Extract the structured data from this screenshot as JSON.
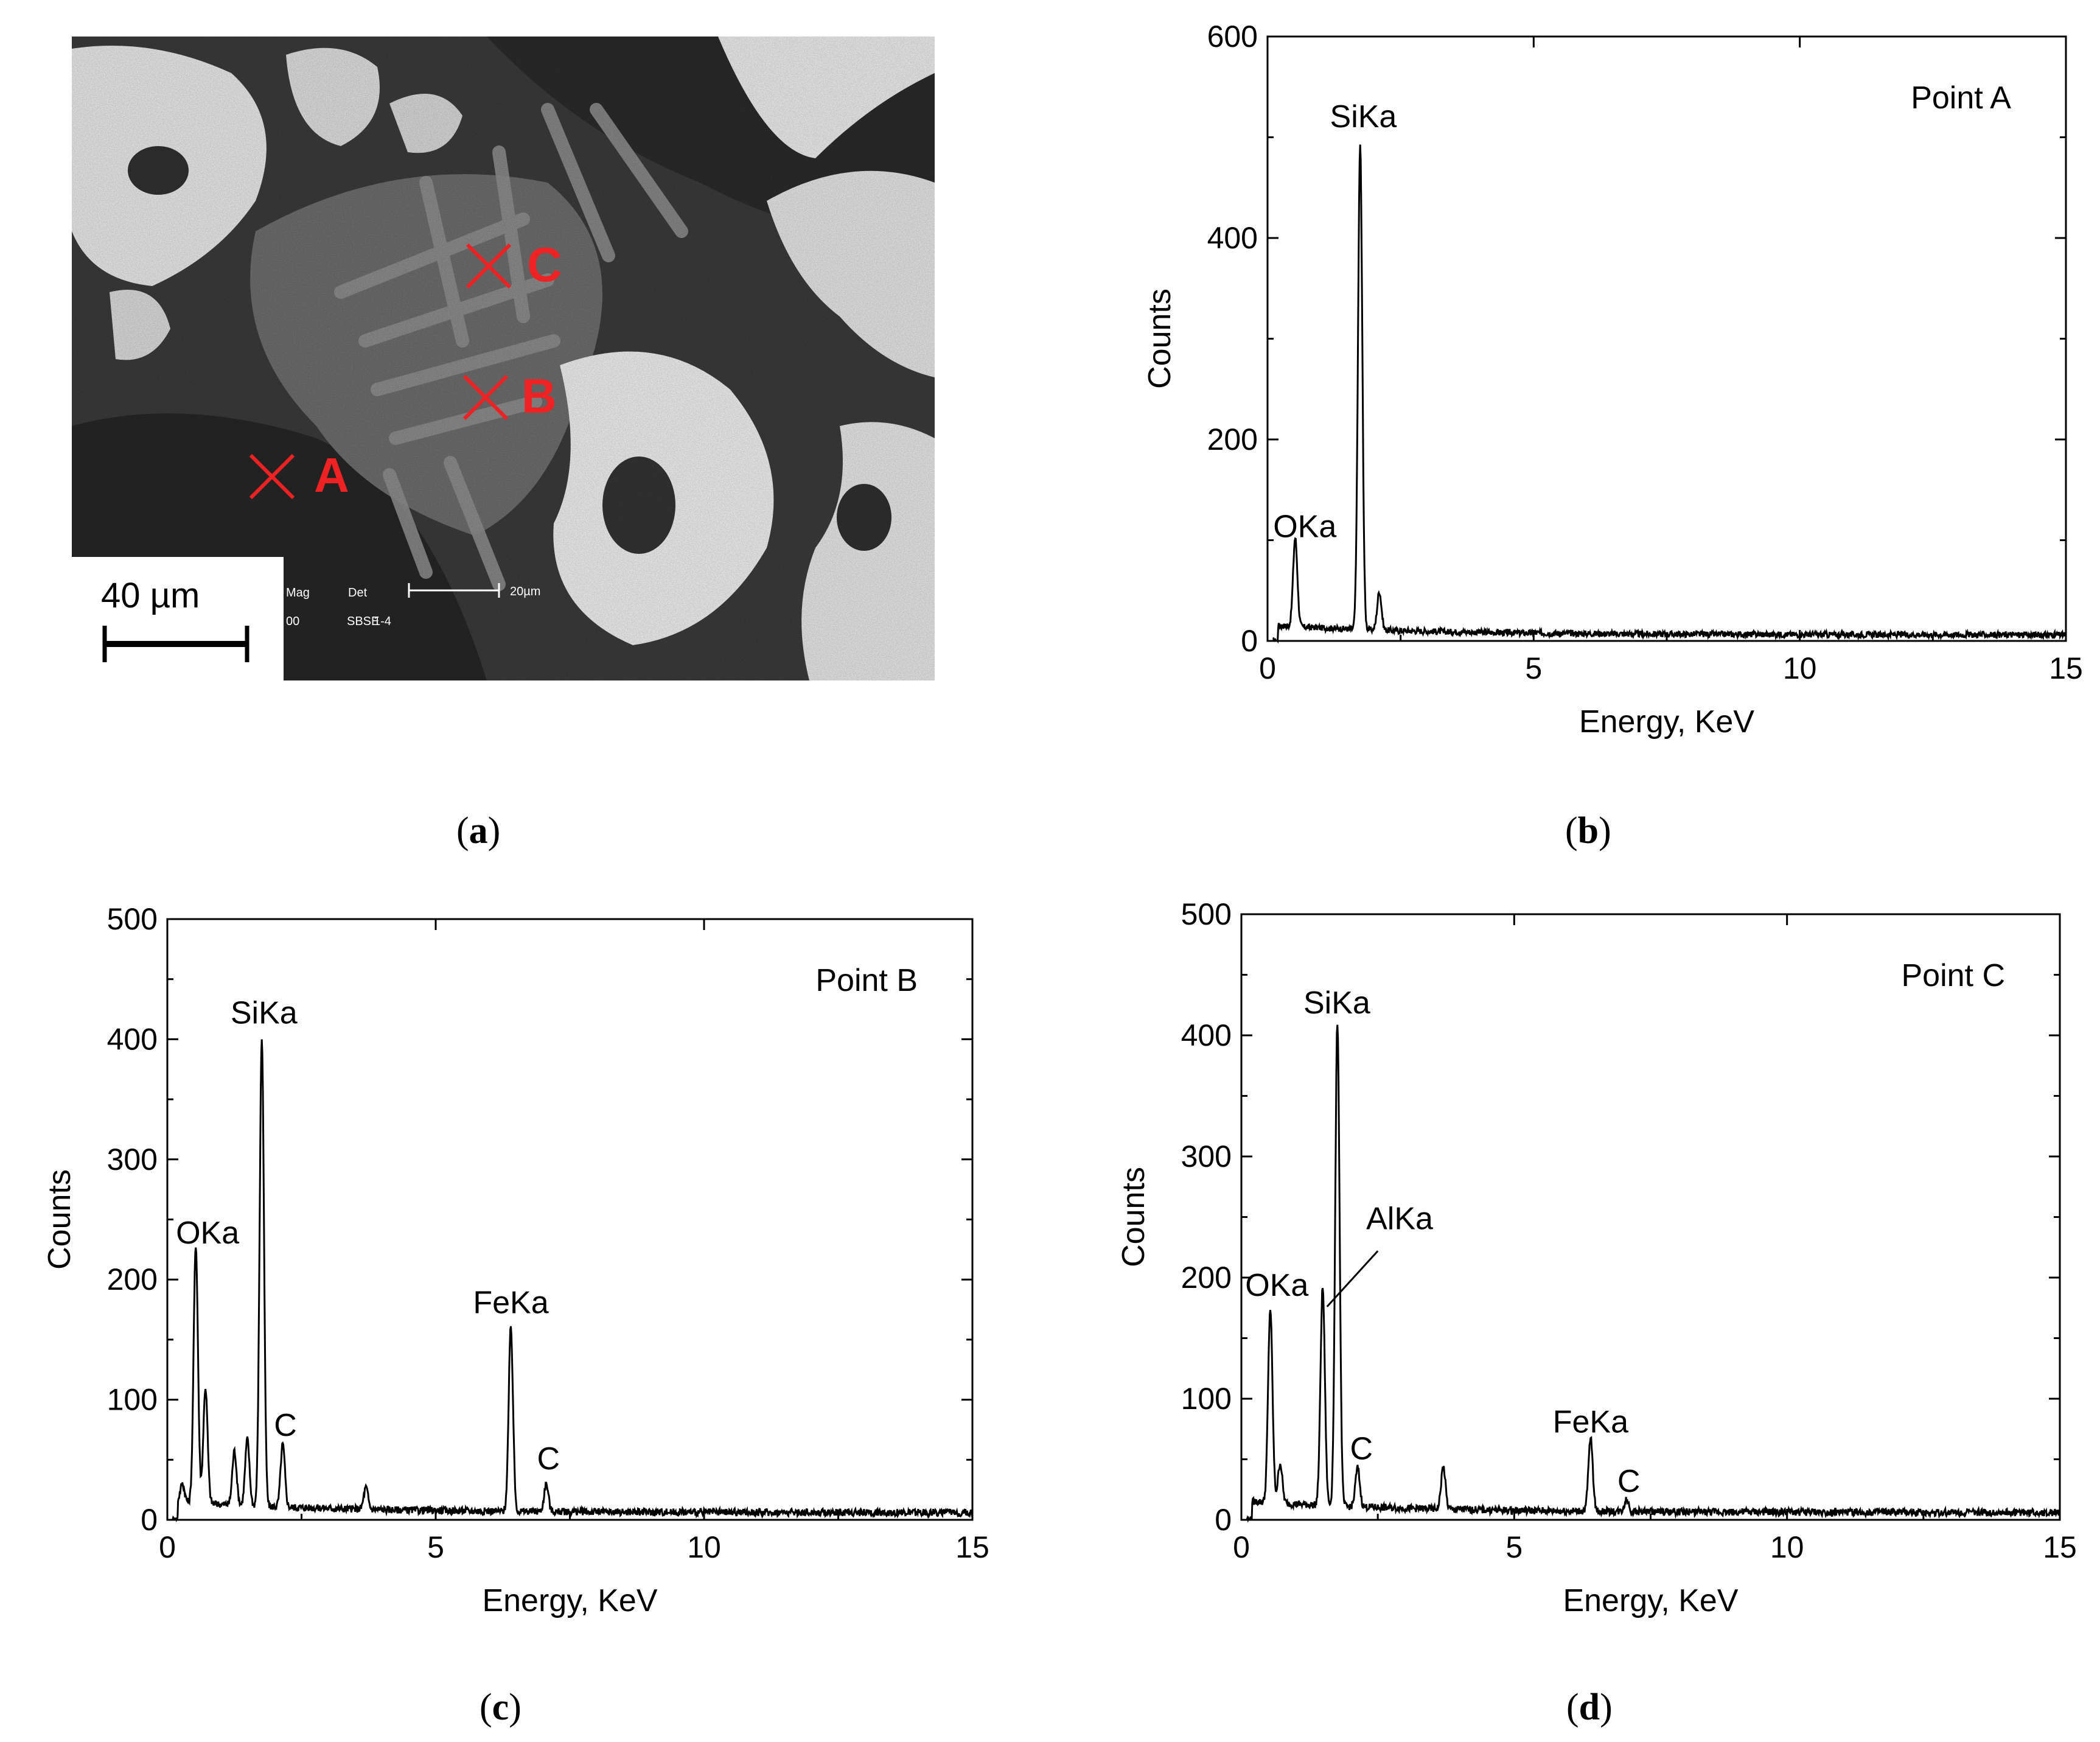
{
  "panels": {
    "a": {
      "caption_letter": "a",
      "markers": [
        {
          "label": "A"
        },
        {
          "label": "B"
        },
        {
          "label": "C"
        }
      ],
      "scale_bar_label": "40 µm",
      "instrument_overlay": {
        "mag": "Mag",
        "det": "Det",
        "sbse": "SBSE",
        "value1": "00",
        "value2": "1-4",
        "scale": "20µm"
      }
    },
    "b": {
      "caption_letter": "b"
    },
    "c": {
      "caption_letter": "c"
    },
    "d": {
      "caption_letter": "d"
    }
  },
  "colors": {
    "marker_red": "#ee2222",
    "line": "#000000"
  },
  "chart_data": [
    {
      "id": "b",
      "type": "line",
      "annotation": "Point A",
      "xlabel": "Energy, KeV",
      "ylabel": "Counts",
      "xlim": [
        0,
        15
      ],
      "ylim": [
        0,
        600
      ],
      "xticks": [
        0,
        5,
        10,
        15
      ],
      "yticks": [
        0,
        200,
        400,
        600
      ],
      "peaks": [
        {
          "label": "OKa",
          "x": 0.52,
          "y": 88
        },
        {
          "label": "SiKa",
          "x": 1.74,
          "y": 480
        },
        {
          "label": "",
          "x": 2.1,
          "y": 38
        }
      ],
      "peak_labels": [
        {
          "text": "OKa",
          "x": 0.7,
          "y": 103
        },
        {
          "text": "SiKa",
          "x": 1.8,
          "y": 510
        }
      ],
      "baseline": 6
    },
    {
      "id": "c",
      "type": "line",
      "annotation": "Point B",
      "xlabel": "Energy, KeV",
      "ylabel": "Counts",
      "xlim": [
        0,
        15
      ],
      "ylim": [
        0,
        500
      ],
      "xticks": [
        0,
        5,
        10,
        15
      ],
      "yticks": [
        0,
        100,
        200,
        300,
        400,
        500
      ],
      "peaks": [
        {
          "label": "",
          "x": 0.28,
          "y": 15
        },
        {
          "label": "OKa",
          "x": 0.53,
          "y": 215
        },
        {
          "label": "",
          "x": 0.71,
          "y": 96
        },
        {
          "label": "",
          "x": 1.25,
          "y": 45
        },
        {
          "label": "",
          "x": 1.49,
          "y": 55
        },
        {
          "label": "SiKa",
          "x": 1.76,
          "y": 390
        },
        {
          "label": "C",
          "x": 2.15,
          "y": 52
        },
        {
          "label": "",
          "x": 3.7,
          "y": 18
        },
        {
          "label": "FeKa",
          "x": 6.4,
          "y": 153
        },
        {
          "label": "C",
          "x": 7.06,
          "y": 23
        }
      ],
      "peak_labels": [
        {
          "text": "OKa",
          "x": 0.75,
          "y": 230
        },
        {
          "text": "SiKa",
          "x": 1.8,
          "y": 413
        },
        {
          "text": "C",
          "x": 2.2,
          "y": 70
        },
        {
          "text": "FeKa",
          "x": 6.4,
          "y": 172
        },
        {
          "text": "C",
          "x": 7.1,
          "y": 42
        }
      ],
      "baseline": 6
    },
    {
      "id": "d",
      "type": "line",
      "annotation": "Point C",
      "xlabel": "Energy, KeV",
      "ylabel": "Counts",
      "xlim": [
        0,
        15
      ],
      "ylim": [
        0,
        500
      ],
      "xticks": [
        0,
        5,
        10,
        15
      ],
      "yticks": [
        0,
        100,
        200,
        300,
        400,
        500
      ],
      "peaks": [
        {
          "label": "OKa",
          "x": 0.53,
          "y": 160
        },
        {
          "label": "",
          "x": 0.71,
          "y": 33
        },
        {
          "label": "AlKa",
          "x": 1.49,
          "y": 180
        },
        {
          "label": "SiKa",
          "x": 1.76,
          "y": 400
        },
        {
          "label": "C",
          "x": 2.13,
          "y": 32
        },
        {
          "label": "",
          "x": 3.7,
          "y": 35
        },
        {
          "label": "FeKa",
          "x": 6.4,
          "y": 60
        },
        {
          "label": "C",
          "x": 7.06,
          "y": 10
        }
      ],
      "peak_labels": [
        {
          "text": "OKa",
          "x": 0.65,
          "y": 185
        },
        {
          "text": "SiKa",
          "x": 1.75,
          "y": 418
        },
        {
          "text": "AlKa",
          "x": 2.9,
          "y": 240
        },
        {
          "text": "C",
          "x": 2.2,
          "y": 50
        },
        {
          "text": "FeKa",
          "x": 6.4,
          "y": 72
        },
        {
          "text": "C",
          "x": 7.1,
          "y": 23
        }
      ],
      "baseline": 6
    }
  ]
}
